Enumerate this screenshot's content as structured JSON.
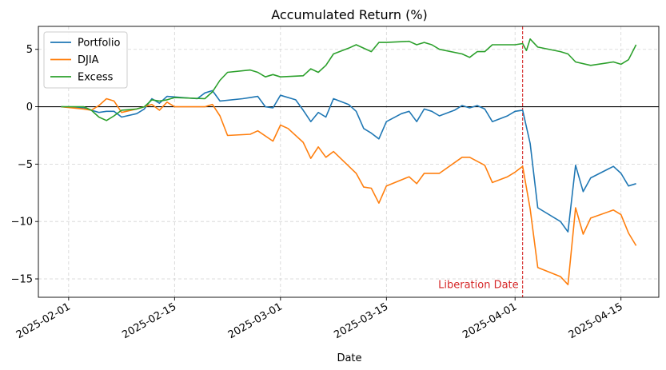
{
  "chart_data": {
    "type": "line",
    "title": "Accumulated Return (%)",
    "xlabel": "Date",
    "ylabel": "",
    "xlim": [
      "2025-01-28",
      "2025-04-20"
    ],
    "ylim": [
      -16.6,
      7.0
    ],
    "grid": true,
    "legend_position": "top-left",
    "x_ticks": [
      "2025-02-01",
      "2025-02-15",
      "2025-03-01",
      "2025-03-15",
      "2025-04-01",
      "2025-04-15"
    ],
    "y_ticks": [
      -15,
      -10,
      -5,
      0,
      5
    ],
    "y_tick_labels": [
      "−15",
      "−10",
      "−5",
      "0",
      "5"
    ],
    "zero_line": 0,
    "annotation": {
      "date": "2025-04-02",
      "label": "Liberation Date",
      "color": "#d62728"
    },
    "series": [
      {
        "name": "Portfolio",
        "color": "#1f77b4",
        "points": [
          [
            "2025-01-31",
            0.0
          ],
          [
            "2025-02-03",
            -0.1
          ],
          [
            "2025-02-04",
            -0.3
          ],
          [
            "2025-02-05",
            -0.5
          ],
          [
            "2025-02-06",
            -0.4
          ],
          [
            "2025-02-07",
            -0.4
          ],
          [
            "2025-02-08",
            -0.9
          ],
          [
            "2025-02-10",
            -0.6
          ],
          [
            "2025-02-11",
            -0.2
          ],
          [
            "2025-02-12",
            0.7
          ],
          [
            "2025-02-13",
            0.3
          ],
          [
            "2025-02-14",
            0.9
          ],
          [
            "2025-02-18",
            0.7
          ],
          [
            "2025-02-19",
            1.2
          ],
          [
            "2025-02-20",
            1.4
          ],
          [
            "2025-02-21",
            0.5
          ],
          [
            "2025-02-24",
            0.7
          ],
          [
            "2025-02-25",
            0.8
          ],
          [
            "2025-02-26",
            0.9
          ],
          [
            "2025-02-27",
            0.0
          ],
          [
            "2025-02-28",
            -0.1
          ],
          [
            "2025-03-01",
            1.0
          ],
          [
            "2025-03-03",
            0.6
          ],
          [
            "2025-03-04",
            -0.3
          ],
          [
            "2025-03-05",
            -1.3
          ],
          [
            "2025-03-06",
            -0.5
          ],
          [
            "2025-03-07",
            -0.9
          ],
          [
            "2025-03-08",
            0.7
          ],
          [
            "2025-03-10",
            0.2
          ],
          [
            "2025-03-11",
            -0.4
          ],
          [
            "2025-03-12",
            -1.9
          ],
          [
            "2025-03-13",
            -2.3
          ],
          [
            "2025-03-14",
            -2.8
          ],
          [
            "2025-03-15",
            -1.3
          ],
          [
            "2025-03-17",
            -0.6
          ],
          [
            "2025-03-18",
            -0.4
          ],
          [
            "2025-03-19",
            -1.3
          ],
          [
            "2025-03-20",
            -0.2
          ],
          [
            "2025-03-21",
            -0.4
          ],
          [
            "2025-03-22",
            -0.8
          ],
          [
            "2025-03-24",
            -0.3
          ],
          [
            "2025-03-25",
            0.1
          ],
          [
            "2025-03-26",
            -0.1
          ],
          [
            "2025-03-27",
            0.1
          ],
          [
            "2025-03-28",
            -0.2
          ],
          [
            "2025-03-29",
            -1.3
          ],
          [
            "2025-03-31",
            -0.8
          ],
          [
            "2025-04-01",
            -0.4
          ],
          [
            "2025-04-02",
            -0.3
          ],
          [
            "2025-04-03",
            -3.2
          ],
          [
            "2025-04-04",
            -8.8
          ],
          [
            "2025-04-07",
            -10.0
          ],
          [
            "2025-04-08",
            -10.9
          ],
          [
            "2025-04-09",
            -5.1
          ],
          [
            "2025-04-10",
            -7.4
          ],
          [
            "2025-04-11",
            -6.2
          ],
          [
            "2025-04-14",
            -5.2
          ],
          [
            "2025-04-15",
            -5.8
          ],
          [
            "2025-04-16",
            -6.9
          ],
          [
            "2025-04-17",
            -6.7
          ]
        ]
      },
      {
        "name": "DJIA",
        "color": "#ff7f0e",
        "points": [
          [
            "2025-01-31",
            0.0
          ],
          [
            "2025-02-03",
            -0.2
          ],
          [
            "2025-02-04",
            -0.3
          ],
          [
            "2025-02-05",
            0.1
          ],
          [
            "2025-02-06",
            0.7
          ],
          [
            "2025-02-07",
            0.5
          ],
          [
            "2025-02-08",
            -0.5
          ],
          [
            "2025-02-10",
            -0.2
          ],
          [
            "2025-02-11",
            0.0
          ],
          [
            "2025-02-12",
            0.2
          ],
          [
            "2025-02-13",
            -0.3
          ],
          [
            "2025-02-14",
            0.4
          ],
          [
            "2025-02-15",
            0.0
          ],
          [
            "2025-02-19",
            0.0
          ],
          [
            "2025-02-20",
            0.2
          ],
          [
            "2025-02-21",
            -0.8
          ],
          [
            "2025-02-22",
            -2.5
          ],
          [
            "2025-02-25",
            -2.4
          ],
          [
            "2025-02-26",
            -2.1
          ],
          [
            "2025-02-28",
            -3.0
          ],
          [
            "2025-03-01",
            -1.6
          ],
          [
            "2025-03-02",
            -1.9
          ],
          [
            "2025-03-04",
            -3.1
          ],
          [
            "2025-03-05",
            -4.5
          ],
          [
            "2025-03-06",
            -3.5
          ],
          [
            "2025-03-07",
            -4.4
          ],
          [
            "2025-03-08",
            -3.9
          ],
          [
            "2025-03-11",
            -5.8
          ],
          [
            "2025-03-12",
            -7.0
          ],
          [
            "2025-03-13",
            -7.1
          ],
          [
            "2025-03-14",
            -8.4
          ],
          [
            "2025-03-15",
            -6.9
          ],
          [
            "2025-03-18",
            -6.1
          ],
          [
            "2025-03-19",
            -6.7
          ],
          [
            "2025-03-20",
            -5.8
          ],
          [
            "2025-03-21",
            -5.8
          ],
          [
            "2025-03-22",
            -5.8
          ],
          [
            "2025-03-25",
            -4.4
          ],
          [
            "2025-03-26",
            -4.4
          ],
          [
            "2025-03-28",
            -5.1
          ],
          [
            "2025-03-29",
            -6.6
          ],
          [
            "2025-03-31",
            -6.1
          ],
          [
            "2025-04-01",
            -5.7
          ],
          [
            "2025-04-02",
            -5.2
          ],
          [
            "2025-04-03",
            -8.9
          ],
          [
            "2025-04-04",
            -14.0
          ],
          [
            "2025-04-07",
            -14.8
          ],
          [
            "2025-04-08",
            -15.5
          ],
          [
            "2025-04-09",
            -8.8
          ],
          [
            "2025-04-10",
            -11.1
          ],
          [
            "2025-04-11",
            -9.7
          ],
          [
            "2025-04-14",
            -9.0
          ],
          [
            "2025-04-15",
            -9.4
          ],
          [
            "2025-04-16",
            -11.0
          ],
          [
            "2025-04-17",
            -12.1
          ]
        ]
      },
      {
        "name": "Excess",
        "color": "#2ca02c",
        "points": [
          [
            "2025-01-31",
            0.0
          ],
          [
            "2025-02-03",
            0.0
          ],
          [
            "2025-02-04",
            -0.3
          ],
          [
            "2025-02-05",
            -0.9
          ],
          [
            "2025-02-06",
            -1.2
          ],
          [
            "2025-02-07",
            -0.8
          ],
          [
            "2025-02-08",
            -0.3
          ],
          [
            "2025-02-10",
            -0.2
          ],
          [
            "2025-02-11",
            0.0
          ],
          [
            "2025-02-12",
            0.6
          ],
          [
            "2025-02-13",
            0.5
          ],
          [
            "2025-02-14",
            0.6
          ],
          [
            "2025-02-15",
            0.8
          ],
          [
            "2025-02-19",
            0.7
          ],
          [
            "2025-02-20",
            1.3
          ],
          [
            "2025-02-21",
            2.3
          ],
          [
            "2025-02-22",
            3.0
          ],
          [
            "2025-02-25",
            3.2
          ],
          [
            "2025-02-26",
            3.0
          ],
          [
            "2025-02-27",
            2.6
          ],
          [
            "2025-02-28",
            2.8
          ],
          [
            "2025-03-01",
            2.6
          ],
          [
            "2025-03-04",
            2.7
          ],
          [
            "2025-03-05",
            3.3
          ],
          [
            "2025-03-06",
            3.0
          ],
          [
            "2025-03-07",
            3.6
          ],
          [
            "2025-03-08",
            4.6
          ],
          [
            "2025-03-10",
            5.1
          ],
          [
            "2025-03-11",
            5.4
          ],
          [
            "2025-03-13",
            4.8
          ],
          [
            "2025-03-14",
            5.6
          ],
          [
            "2025-03-15",
            5.6
          ],
          [
            "2025-03-18",
            5.7
          ],
          [
            "2025-03-19",
            5.4
          ],
          [
            "2025-03-20",
            5.6
          ],
          [
            "2025-03-21",
            5.4
          ],
          [
            "2025-03-22",
            5.0
          ],
          [
            "2025-03-25",
            4.6
          ],
          [
            "2025-03-26",
            4.3
          ],
          [
            "2025-03-27",
            4.8
          ],
          [
            "2025-03-28",
            4.8
          ],
          [
            "2025-03-29",
            5.4
          ],
          [
            "2025-04-01",
            5.4
          ],
          [
            "2025-04-02",
            5.5
          ],
          [
            "2025-04-02T12",
            4.9
          ],
          [
            "2025-04-03",
            5.9
          ],
          [
            "2025-04-04",
            5.2
          ],
          [
            "2025-04-07",
            4.8
          ],
          [
            "2025-04-08",
            4.6
          ],
          [
            "2025-04-09",
            3.9
          ],
          [
            "2025-04-11",
            3.6
          ],
          [
            "2025-04-14",
            3.9
          ],
          [
            "2025-04-15",
            3.7
          ],
          [
            "2025-04-16",
            4.1
          ],
          [
            "2025-04-17",
            5.4
          ]
        ]
      }
    ]
  }
}
